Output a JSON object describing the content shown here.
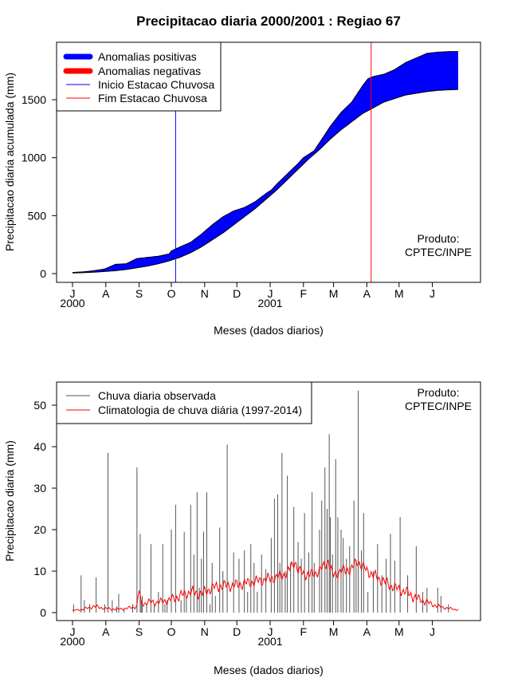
{
  "chart_data": [
    {
      "id": "accumulated",
      "type": "area",
      "title": "Precipitacao diaria 2000/2001 : Regiao 67",
      "xlabel": "Meses (dados diarios)",
      "ylabel": "Precipitacao diaria acumulada (mm)",
      "xlim": [
        0,
        365
      ],
      "ylim": [
        0,
        1950
      ],
      "xticks": [
        {
          "label": "J",
          "day": 0
        },
        {
          "label": "A",
          "day": 31
        },
        {
          "label": "S",
          "day": 62
        },
        {
          "label": "O",
          "day": 92
        },
        {
          "label": "N",
          "day": 123
        },
        {
          "label": "D",
          "day": 153
        },
        {
          "label": "J",
          "day": 184
        },
        {
          "label": "F",
          "day": 215
        },
        {
          "label": "M",
          "day": 243
        },
        {
          "label": "A",
          "day": 274
        },
        {
          "label": "M",
          "day": 304
        },
        {
          "label": "J",
          "day": 335
        }
      ],
      "year_labels": [
        {
          "label": "2000",
          "day": 0
        },
        {
          "label": "2001",
          "day": 184
        }
      ],
      "yticks": [
        0,
        500,
        1000,
        1500
      ],
      "series": [
        {
          "name": "Observed accumulated",
          "color": "#000000",
          "x": [
            0,
            10,
            20,
            30,
            40,
            50,
            60,
            70,
            80,
            90,
            92,
            100,
            110,
            120,
            130,
            140,
            150,
            160,
            170,
            180,
            185,
            190,
            200,
            210,
            215,
            220,
            225,
            230,
            240,
            250,
            260,
            270,
            275,
            280,
            290,
            300,
            310,
            320,
            330,
            340,
            350,
            365
          ],
          "values": [
            10,
            15,
            25,
            40,
            80,
            85,
            130,
            140,
            150,
            170,
            195,
            230,
            270,
            340,
            420,
            490,
            540,
            570,
            620,
            690,
            720,
            770,
            860,
            950,
            1000,
            1030,
            1060,
            1130,
            1270,
            1390,
            1480,
            1620,
            1680,
            1700,
            1720,
            1760,
            1820,
            1860,
            1900,
            1910,
            1915,
            1915
          ]
        },
        {
          "name": "Climatology accumulated",
          "color": "#000000",
          "x": [
            0,
            10,
            20,
            30,
            40,
            50,
            60,
            70,
            80,
            90,
            100,
            110,
            120,
            130,
            140,
            150,
            160,
            170,
            180,
            190,
            200,
            210,
            220,
            230,
            240,
            250,
            260,
            270,
            280,
            290,
            300,
            310,
            320,
            330,
            340,
            350,
            365
          ],
          "values": [
            5,
            8,
            12,
            18,
            25,
            35,
            50,
            65,
            85,
            110,
            140,
            180,
            230,
            290,
            350,
            420,
            490,
            560,
            640,
            720,
            810,
            900,
            990,
            1070,
            1160,
            1240,
            1310,
            1380,
            1430,
            1480,
            1510,
            1540,
            1555,
            1570,
            1580,
            1585,
            1590
          ]
        }
      ],
      "fills": {
        "positive": "#0000ff",
        "negative": "#ff0000"
      },
      "vlines": [
        {
          "name": "Inicio Estacao Chuvosa",
          "day": 96,
          "color": "#0000ff"
        },
        {
          "name": "Fim Estacao Chuvosa",
          "day": 278,
          "color": "#ff0000"
        }
      ],
      "legend": {
        "placement": "top-left",
        "items": [
          {
            "label": "Anomalias positivas",
            "color": "#0000ff",
            "style": "thick"
          },
          {
            "label": "Anomalias negativas",
            "color": "#ff0000",
            "style": "thick"
          },
          {
            "label": "Inicio Estacao Chuvosa",
            "color": "#0000ff",
            "style": "thin"
          },
          {
            "label": "Fim Estacao Chuvosa",
            "color": "#ff0000",
            "style": "thin"
          }
        ]
      },
      "product_label": [
        "Produto:",
        "CPTEC/INPE"
      ]
    },
    {
      "id": "daily",
      "type": "bar",
      "title": "",
      "xlabel": "Meses (dados diarios)",
      "ylabel": "Precipitacao diaria (mm)",
      "xlim": [
        0,
        365
      ],
      "ylim": [
        0,
        55
      ],
      "xticks": [
        {
          "label": "J",
          "day": 0
        },
        {
          "label": "A",
          "day": 31
        },
        {
          "label": "S",
          "day": 62
        },
        {
          "label": "O",
          "day": 92
        },
        {
          "label": "N",
          "day": 123
        },
        {
          "label": "D",
          "day": 153
        },
        {
          "label": "J",
          "day": 184
        },
        {
          "label": "F",
          "day": 215
        },
        {
          "label": "M",
          "day": 243
        },
        {
          "label": "A",
          "day": 274
        },
        {
          "label": "M",
          "day": 304
        },
        {
          "label": "J",
          "day": 335
        }
      ],
      "year_labels": [
        {
          "label": "2000",
          "day": 0
        },
        {
          "label": "2001",
          "day": 184
        }
      ],
      "yticks": [
        0,
        10,
        20,
        30,
        40,
        50
      ],
      "series": [
        {
          "name": "Chuva diaria observada",
          "color": "#555555",
          "days": [
            1,
            8,
            11,
            16,
            22,
            30,
            33,
            37,
            41,
            43,
            48,
            56,
            60,
            63,
            64,
            65,
            69,
            73,
            76,
            80,
            84,
            86,
            88,
            92,
            96,
            101,
            104,
            106,
            110,
            113,
            116,
            118,
            120,
            122,
            125,
            128,
            130,
            133,
            137,
            140,
            144,
            150,
            155,
            160,
            163,
            166,
            169,
            172,
            176,
            180,
            185,
            188,
            191,
            193,
            195,
            198,
            200,
            203,
            206,
            210,
            213,
            216,
            220,
            223,
            225,
            230,
            232,
            235,
            237,
            239,
            240,
            242,
            245,
            247,
            250,
            252,
            255,
            258,
            262,
            264,
            266,
            269,
            271,
            275,
            280,
            284,
            288,
            292,
            296,
            300,
            305,
            312,
            320,
            326,
            330,
            340,
            343,
            350
          ],
          "values": [
            2,
            9,
            3,
            2,
            8.5,
            2,
            38.5,
            3,
            1.5,
            4.5,
            1,
            2,
            35,
            19,
            3,
            4,
            2,
            16.5,
            2,
            5,
            16.5,
            2,
            3,
            20,
            26,
            3,
            19.5,
            4,
            26,
            14,
            29,
            6,
            13,
            19.5,
            29,
            2,
            12,
            4,
            20.5,
            10,
            40.5,
            14.5,
            13,
            15,
            5,
            16.5,
            12,
            5,
            14,
            10.5,
            18,
            27.5,
            28.5,
            12,
            38.5,
            10,
            33,
            12,
            25.5,
            17,
            13,
            24,
            14.5,
            29,
            12,
            20,
            27,
            35,
            25,
            43,
            23,
            14,
            37,
            23,
            20,
            18,
            13,
            16,
            27,
            12,
            53.5,
            15,
            24,
            5,
            10,
            16.5,
            9,
            13,
            19,
            12.5,
            23,
            9,
            16,
            5,
            6,
            6,
            4,
            2
          ]
        },
        {
          "name": "Climatologia de chuva diária (1997-2014)",
          "color": "#ff0000",
          "x": [
            0,
            10,
            20,
            30,
            40,
            50,
            60,
            62,
            64,
            70,
            80,
            90,
            95,
            100,
            110,
            120,
            130,
            140,
            150,
            160,
            170,
            180,
            190,
            200,
            207,
            210,
            220,
            230,
            238,
            242,
            250,
            260,
            265,
            270,
            280,
            290,
            300,
            310,
            320,
            330,
            340,
            350,
            365
          ],
          "values": [
            0.5,
            0.8,
            1.5,
            1.0,
            0.8,
            1.0,
            1.5,
            5.5,
            2.0,
            2.5,
            2.5,
            3.0,
            3.5,
            4.0,
            5.0,
            4.5,
            6.0,
            6.5,
            6.5,
            7.0,
            7.5,
            8.0,
            8.5,
            9.5,
            12.5,
            10,
            9.0,
            10.0,
            12.5,
            9.0,
            10,
            10.5,
            12.5,
            11,
            9.0,
            7.5,
            6.0,
            5.0,
            3.5,
            2.5,
            1.5,
            1.0,
            0.5
          ]
        }
      ],
      "legend": {
        "placement": "top-left",
        "items": [
          {
            "label": "Chuva diaria observada",
            "color": "#555555",
            "style": "thin"
          },
          {
            "label": "Climatologia de chuva diária (1997-2014)",
            "color": "#ff0000",
            "style": "thin"
          }
        ]
      },
      "product_label": [
        "Produto:",
        "CPTEC/INPE"
      ]
    }
  ]
}
